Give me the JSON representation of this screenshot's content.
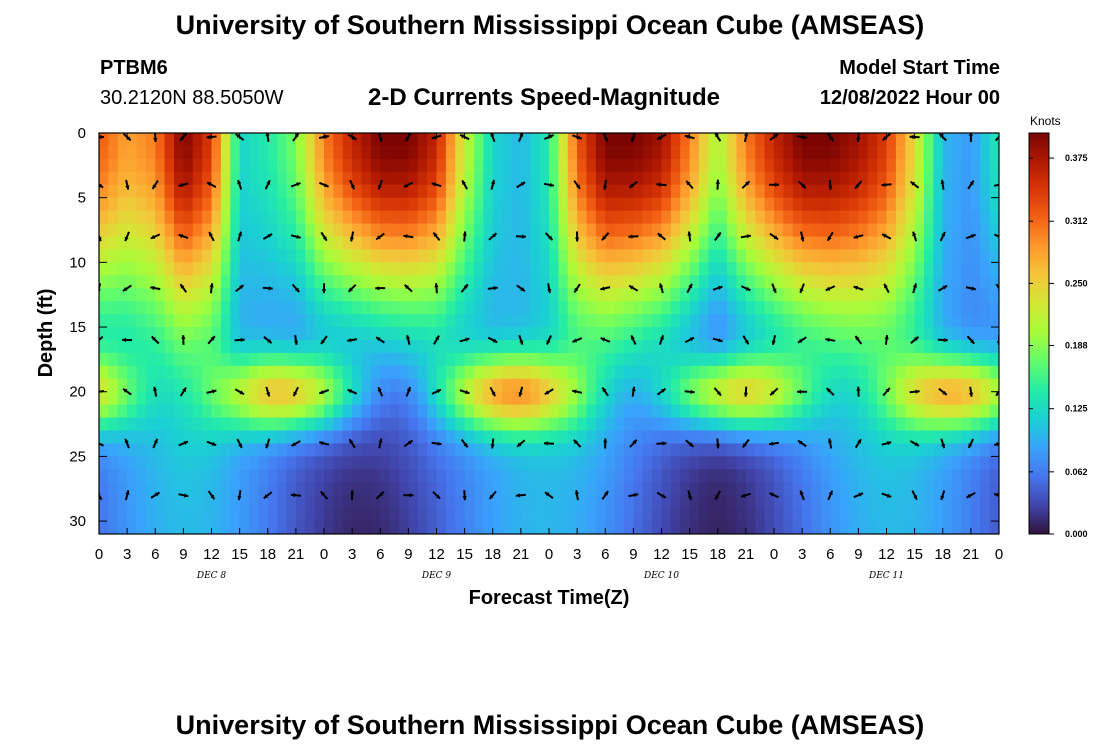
{
  "title": "University of Southern Mississippi Ocean Cube (AMSEAS)",
  "footer_title": "University of Southern Mississippi Ocean Cube (AMSEAS)",
  "station": {
    "name": "PTBM6",
    "coords": "30.2120N  88.5050W"
  },
  "subtitle": "2-D Currents Speed-Magnitude",
  "model_start": {
    "label": "Model Start Time",
    "value": "12/08/2022 Hour 00"
  },
  "chart_data": {
    "type": "heatmap",
    "title": "2-D Currents Speed-Magnitude",
    "xlabel": "Forecast Time(Z)",
    "ylabel": "Depth (ft)",
    "x_range_hours": [
      0,
      96
    ],
    "y_range_ft": [
      0,
      31
    ],
    "x_tick_labels": [
      "0",
      "3",
      "6",
      "9",
      "12",
      "15",
      "18",
      "21",
      "0",
      "3",
      "6",
      "9",
      "12",
      "15",
      "18",
      "21",
      "0",
      "3",
      "6",
      "9",
      "12",
      "15",
      "18",
      "21",
      "0",
      "3",
      "6",
      "9",
      "12",
      "15",
      "18",
      "21",
      "0"
    ],
    "y_tick_labels": [
      "0",
      "5",
      "10",
      "15",
      "20",
      "25",
      "30"
    ],
    "y_ticks": [
      0,
      5,
      10,
      15,
      20,
      25,
      30
    ],
    "day_labels": [
      {
        "label": "DEC 8",
        "hour": 12
      },
      {
        "label": "DEC 9",
        "hour": 36
      },
      {
        "label": "DEC 10",
        "hour": 60
      },
      {
        "label": "DEC 11",
        "hour": 84
      }
    ],
    "colorbar": {
      "unit": "Knots",
      "ticks": [
        "0.000",
        "0.062",
        "0.125",
        "0.188",
        "0.250",
        "0.312",
        "0.375"
      ],
      "range": [
        0,
        0.4
      ]
    },
    "surface_speed_profile": [
      {
        "hour": 0,
        "value": 0.32
      },
      {
        "hour": 3,
        "value": 0.28
      },
      {
        "hour": 6,
        "value": 0.3
      },
      {
        "hour": 9,
        "value": 0.4
      },
      {
        "hour": 12,
        "value": 0.34
      },
      {
        "hour": 15,
        "value": 0.12
      },
      {
        "hour": 18,
        "value": 0.14
      },
      {
        "hour": 21,
        "value": 0.18
      },
      {
        "hour": 24,
        "value": 0.3
      },
      {
        "hour": 27,
        "value": 0.36
      },
      {
        "hour": 30,
        "value": 0.4
      },
      {
        "hour": 33,
        "value": 0.4
      },
      {
        "hour": 36,
        "value": 0.36
      },
      {
        "hour": 39,
        "value": 0.22
      },
      {
        "hour": 42,
        "value": 0.12
      },
      {
        "hour": 45,
        "value": 0.1
      },
      {
        "hour": 48,
        "value": 0.14
      },
      {
        "hour": 51,
        "value": 0.32
      },
      {
        "hour": 54,
        "value": 0.4
      },
      {
        "hour": 57,
        "value": 0.4
      },
      {
        "hour": 60,
        "value": 0.38
      },
      {
        "hour": 63,
        "value": 0.3
      },
      {
        "hour": 66,
        "value": 0.2
      },
      {
        "hour": 69,
        "value": 0.3
      },
      {
        "hour": 72,
        "value": 0.36
      },
      {
        "hour": 75,
        "value": 0.4
      },
      {
        "hour": 78,
        "value": 0.4
      },
      {
        "hour": 81,
        "value": 0.38
      },
      {
        "hour": 84,
        "value": 0.34
      },
      {
        "hour": 87,
        "value": 0.24
      },
      {
        "hour": 90,
        "value": 0.1
      },
      {
        "hour": 93,
        "value": 0.08
      },
      {
        "hour": 96,
        "value": 0.14
      }
    ],
    "palette": [
      "#30123b",
      "#4145ab",
      "#4675ed",
      "#39a2fc",
      "#1bcfd4",
      "#24eca6",
      "#61fc6c",
      "#a4fc3b",
      "#d1e834",
      "#f3c63a",
      "#fe9b2d",
      "#f36315",
      "#d93806",
      "#b11901",
      "#7a0403"
    ]
  }
}
